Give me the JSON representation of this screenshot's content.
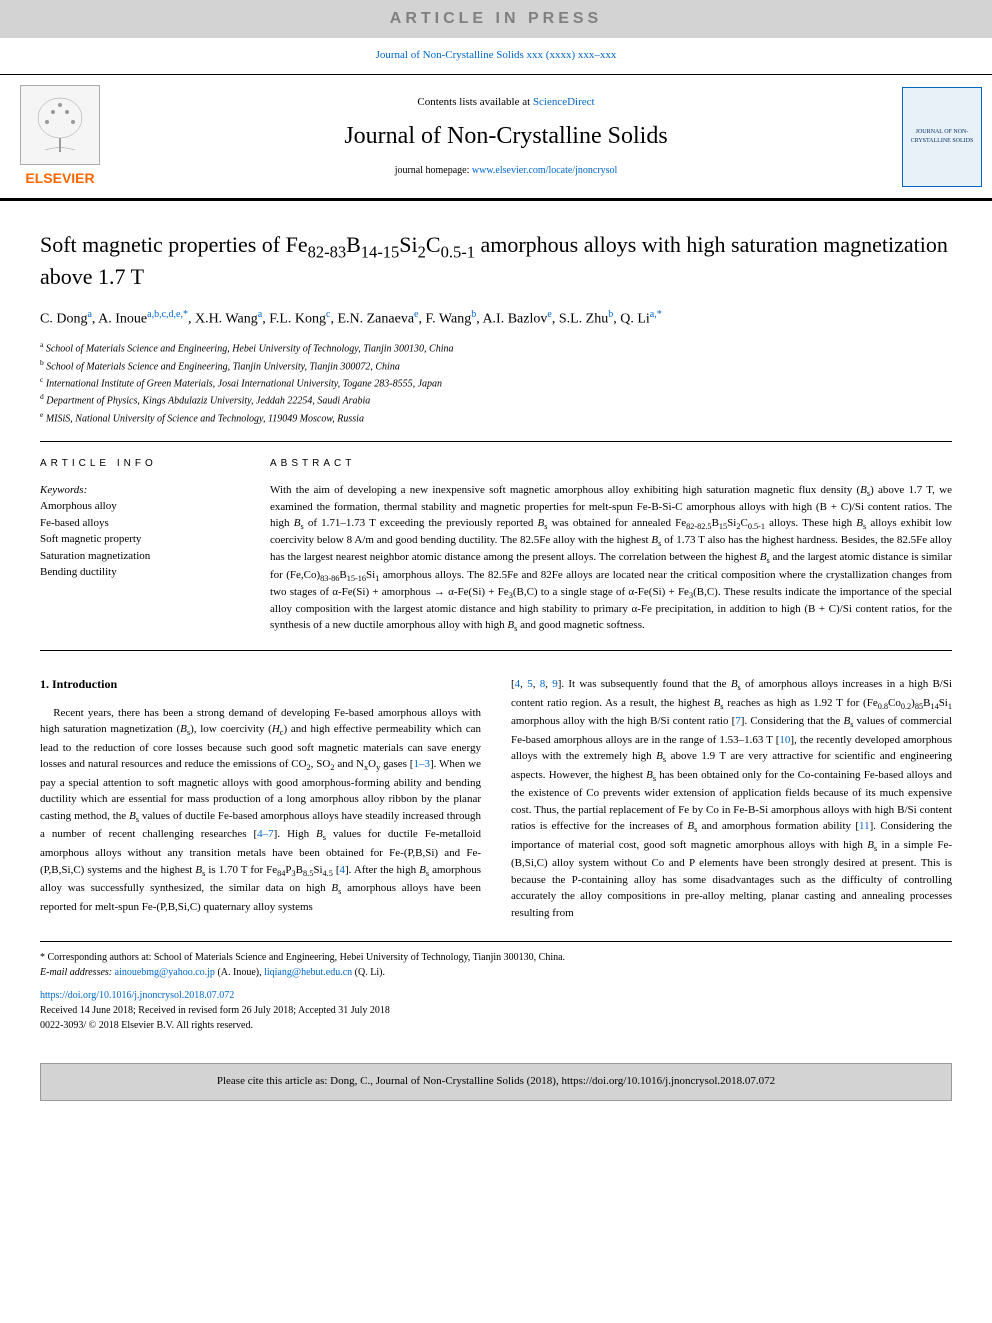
{
  "watermark": "ARTICLE IN PRESS",
  "journal_ref_link": "Journal of Non-Crystalline Solids xxx (xxxx) xxx–xxx",
  "header": {
    "contents_prefix": "Contents lists available at ",
    "contents_link": "ScienceDirect",
    "journal_title": "Journal of Non-Crystalline Solids",
    "homepage_prefix": "journal homepage: ",
    "homepage_link": "www.elsevier.com/locate/jnoncrysol",
    "elsevier_label": "ELSEVIER",
    "cover_label": "JOURNAL OF NON-CRYSTALLINE SOLIDS"
  },
  "article": {
    "title_html": "Soft magnetic properties of Fe<sub>82-83</sub>B<sub>14-15</sub>Si<sub>2</sub>C<sub>0.5-1</sub> amorphous alloys with high saturation magnetization above 1.7 T",
    "authors_html": "C. Dong<sup>a</sup>, A. Inoue<sup>a,b,c,d,e,*</sup>, X.H. Wang<sup>a</sup>, F.L. Kong<sup>c</sup>, E.N. Zanaeva<sup>e</sup>, F. Wang<sup>b</sup>, A.I. Bazlov<sup>e</sup>, S.L. Zhu<sup>b</sup>, Q. Li<sup>a,*</sup>",
    "affiliations": [
      {
        "sup": "a",
        "text": "School of Materials Science and Engineering, Hebei University of Technology, Tianjin 300130, China"
      },
      {
        "sup": "b",
        "text": "School of Materials Science and Engineering, Tianjin University, Tianjin 300072, China"
      },
      {
        "sup": "c",
        "text": "International Institute of Green Materials, Josai International University, Togane 283-8555, Japan"
      },
      {
        "sup": "d",
        "text": "Department of Physics, Kings Abdulaziz University, Jeddah 22254, Saudi Arabia"
      },
      {
        "sup": "e",
        "text": "MISiS, National University of Science and Technology, 119049 Moscow, Russia"
      }
    ]
  },
  "info": {
    "heading": "ARTICLE INFO",
    "keywords_label": "Keywords:",
    "keywords": [
      "Amorphous alloy",
      "Fe-based alloys",
      "Soft magnetic property",
      "Saturation magnetization",
      "Bending ductility"
    ]
  },
  "abstract": {
    "heading": "ABSTRACT",
    "text_html": "With the aim of developing a new inexpensive soft magnetic amorphous alloy exhibiting high saturation magnetic flux density (<i>B</i><sub>s</sub>) above 1.7 T, we examined the formation, thermal stability and magnetic properties for melt-spun Fe-B-Si-C amorphous alloys with high (B + C)/Si content ratios. The high <i>B</i><sub>s</sub> of 1.71–1.73 T exceeding the previously reported <i>B</i><sub>s</sub> was obtained for annealed Fe<sub>82-82.5</sub>B<sub>15</sub>Si<sub>2</sub>C<sub>0.5-1</sub> alloys. These high <i>B</i><sub>s</sub> alloys exhibit low coercivity below 8 A/m and good bending ductility. The 82.5Fe alloy with the highest <i>B</i><sub>s</sub> of 1.73 T also has the highest hardness. Besides, the 82.5Fe alloy has the largest nearest neighbor atomic distance among the present alloys. The correlation between the highest <i>B</i><sub>s</sub> and the largest atomic distance is similar for (Fe,Co)<sub>83-86</sub>B<sub>15-16</sub>Si<sub>1</sub> amorphous alloys. The 82.5Fe and 82Fe alloys are located near the critical composition where the crystallization changes from two stages of α-Fe(Si) + amorphous → α-Fe(Si) + Fe<sub>3</sub>(B,C) to a single stage of α-Fe(Si) + Fe<sub>3</sub>(B,C). These results indicate the importance of the special alloy composition with the largest atomic distance and high stability to primary α-Fe precipitation, in addition to high (B + C)/Si content ratios, for the synthesis of a new ductile amorphous alloy with high <i>B</i><sub>s</sub> and good magnetic softness."
  },
  "introduction": {
    "heading": "1. Introduction",
    "col1_html": "Recent years, there has been a strong demand of developing Fe-based amorphous alloys with high saturation magnetization (<i>B</i><sub>s</sub>), low coercivity (<i>H</i><sub>c</sub>) and high effective permeability which can lead to the reduction of core losses because such good soft magnetic materials can save energy losses and natural resources and reduce the emissions of CO<sub>2</sub>, SO<sub>2</sub> and N<sub>x</sub>O<sub>y</sub> gases [<a>1–3</a>]. When we pay a special attention to soft magnetic alloys with good amorphous-forming ability and bending ductility which are essential for mass production of a long amorphous alloy ribbon by the planar casting method, the <i>B</i><sub>s</sub> values of ductile Fe-based amorphous alloys have steadily increased through a number of recent challenging researches [<a>4–7</a>]. High <i>B</i><sub>s</sub> values for ductile Fe-metalloid amorphous alloys without any transition metals have been obtained for Fe-(P,B,Si) and Fe-(P,B,Si,C) systems and the highest <i>B</i><sub>s</sub> is 1.70 T for Fe<sub>84</sub>P<sub>3</sub>B<sub>8.5</sub>Si<sub>4.5</sub> [<a>4</a>]. After the high <i>B</i><sub>s</sub> amorphous alloy was successfully synthesized, the similar data on high <i>B</i><sub>s</sub> amorphous alloys have been reported for melt-spun Fe-(P,B,Si,C) quaternary alloy systems",
    "col2_html": "[<a>4</a>, <a>5</a>, <a>8</a>, <a>9</a>]. It was subsequently found that the <i>B</i><sub>s</sub> of amorphous alloys increases in a high B/Si content ratio region. As a result, the highest <i>B</i><sub>s</sub> reaches as high as 1.92 T for (Fe<sub>0.8</sub>Co<sub>0.2</sub>)<sub>85</sub>B<sub>14</sub>Si<sub>1</sub> amorphous alloy with the high B/Si content ratio [<a>7</a>]. Considering that the <i>B</i><sub>s</sub> values of commercial Fe-based amorphous alloys are in the range of 1.53–1.63 T [<a>10</a>], the recently developed amorphous alloys with the extremely high <i>B</i><sub>s</sub> above 1.9 T are very attractive for scientific and engineering aspects. However, the highest <i>B</i><sub>s</sub> has been obtained only for the Co-containing Fe-based alloys and the existence of Co prevents wider extension of application fields because of its much expensive cost. Thus, the partial replacement of Fe by Co in Fe-B-Si amorphous alloys with high B/Si content ratios is effective for the increases of <i>B</i><sub>s</sub> and amorphous formation ability [<a>11</a>]. Considering the importance of material cost, good soft magnetic amorphous alloys with high <i>B</i><sub>s</sub> in a simple Fe-(B,Si,C) alloy system without Co and P elements have been strongly desired at present. This is because the P-containing alloy has some disadvantages such as the difficulty of controlling accurately the alloy compositions in pre-alloy melting, planar casting and annealing processes resulting from"
  },
  "footnotes": {
    "corresponding": "* Corresponding authors at: School of Materials Science and Engineering, Hebei University of Technology, Tianjin 300130, China.",
    "email_label": "E-mail addresses: ",
    "email1": "ainouebmg@yahoo.co.jp",
    "email1_name": " (A. Inoue), ",
    "email2": "liqiang@hebut.edu.cn",
    "email2_name": " (Q. Li)."
  },
  "doi": {
    "link": "https://doi.org/10.1016/j.jnoncrysol.2018.07.072",
    "received": "Received 14 June 2018; Received in revised form 26 July 2018; Accepted 31 July 2018",
    "copyright": "0022-3093/ © 2018 Elsevier B.V. All rights reserved."
  },
  "citation": "Please cite this article as: Dong, C., Journal of Non-Crystalline Solids (2018), https://doi.org/10.1016/j.jnoncrysol.2018.07.072",
  "colors": {
    "link": "#0066cc",
    "elsevier_orange": "#ff6600",
    "banner_bg": "#d3d3d3"
  }
}
